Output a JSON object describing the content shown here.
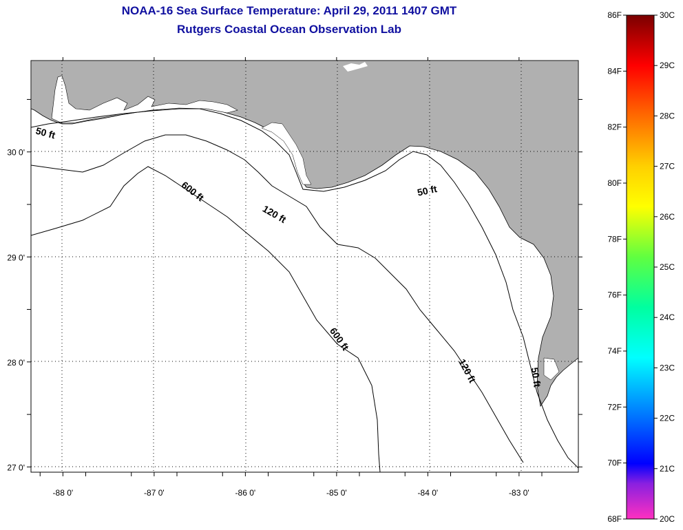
{
  "title": {
    "line1": "NOAA-16 Sea Surface Temperature:  April 29, 2011 1407 GMT",
    "line2": "Rutgers Coastal Ocean Observation Lab"
  },
  "colors": {
    "title": "#1010a0",
    "land": "#b0b0b0",
    "ocean": "#ffffff",
    "contour": "#000000"
  },
  "map": {
    "lon_range": [
      -88.35,
      -82.35
    ],
    "lat_range": [
      26.95,
      30.87
    ],
    "lon_ticks": [
      {
        "value": -88,
        "label": "-88 0'"
      },
      {
        "value": -87,
        "label": "-87 0'"
      },
      {
        "value": -86,
        "label": "-86 0'"
      },
      {
        "value": -85,
        "label": "-85 0'"
      },
      {
        "value": -84,
        "label": "-84 0'"
      },
      {
        "value": -83,
        "label": "-83 0'"
      }
    ],
    "lat_ticks": [
      {
        "value": 30,
        "label": "30 0'"
      },
      {
        "value": 29,
        "label": "29 0'"
      },
      {
        "value": 28,
        "label": "28 0'"
      },
      {
        "value": 27,
        "label": "27 0'"
      }
    ],
    "contour_labels": [
      {
        "text": "50 ft",
        "lon": -88.2,
        "lat": 30.15,
        "rotate": 15
      },
      {
        "text": "600 ft",
        "lon": -86.6,
        "lat": 29.6,
        "rotate": 38
      },
      {
        "text": "120 ft",
        "lon": -85.7,
        "lat": 29.38,
        "rotate": 30
      },
      {
        "text": "50 ft",
        "lon": -84.0,
        "lat": 29.6,
        "rotate": -12
      },
      {
        "text": "600 ft",
        "lon": -85.0,
        "lat": 28.2,
        "rotate": 55
      },
      {
        "text": "120 ft",
        "lon": -83.6,
        "lat": 27.9,
        "rotate": 62
      },
      {
        "text": "50 ft",
        "lon": -82.85,
        "lat": 27.85,
        "rotate": 82
      }
    ]
  },
  "colorbar": {
    "left_labels": [
      "86F",
      "84F",
      "82F",
      "80F",
      "78F",
      "76F",
      "74F",
      "72F",
      "70F",
      "68F"
    ],
    "right_labels": [
      "30C",
      "29C",
      "28C",
      "27C",
      "26C",
      "25C",
      "24C",
      "23C",
      "22C",
      "21C",
      "20C"
    ]
  }
}
